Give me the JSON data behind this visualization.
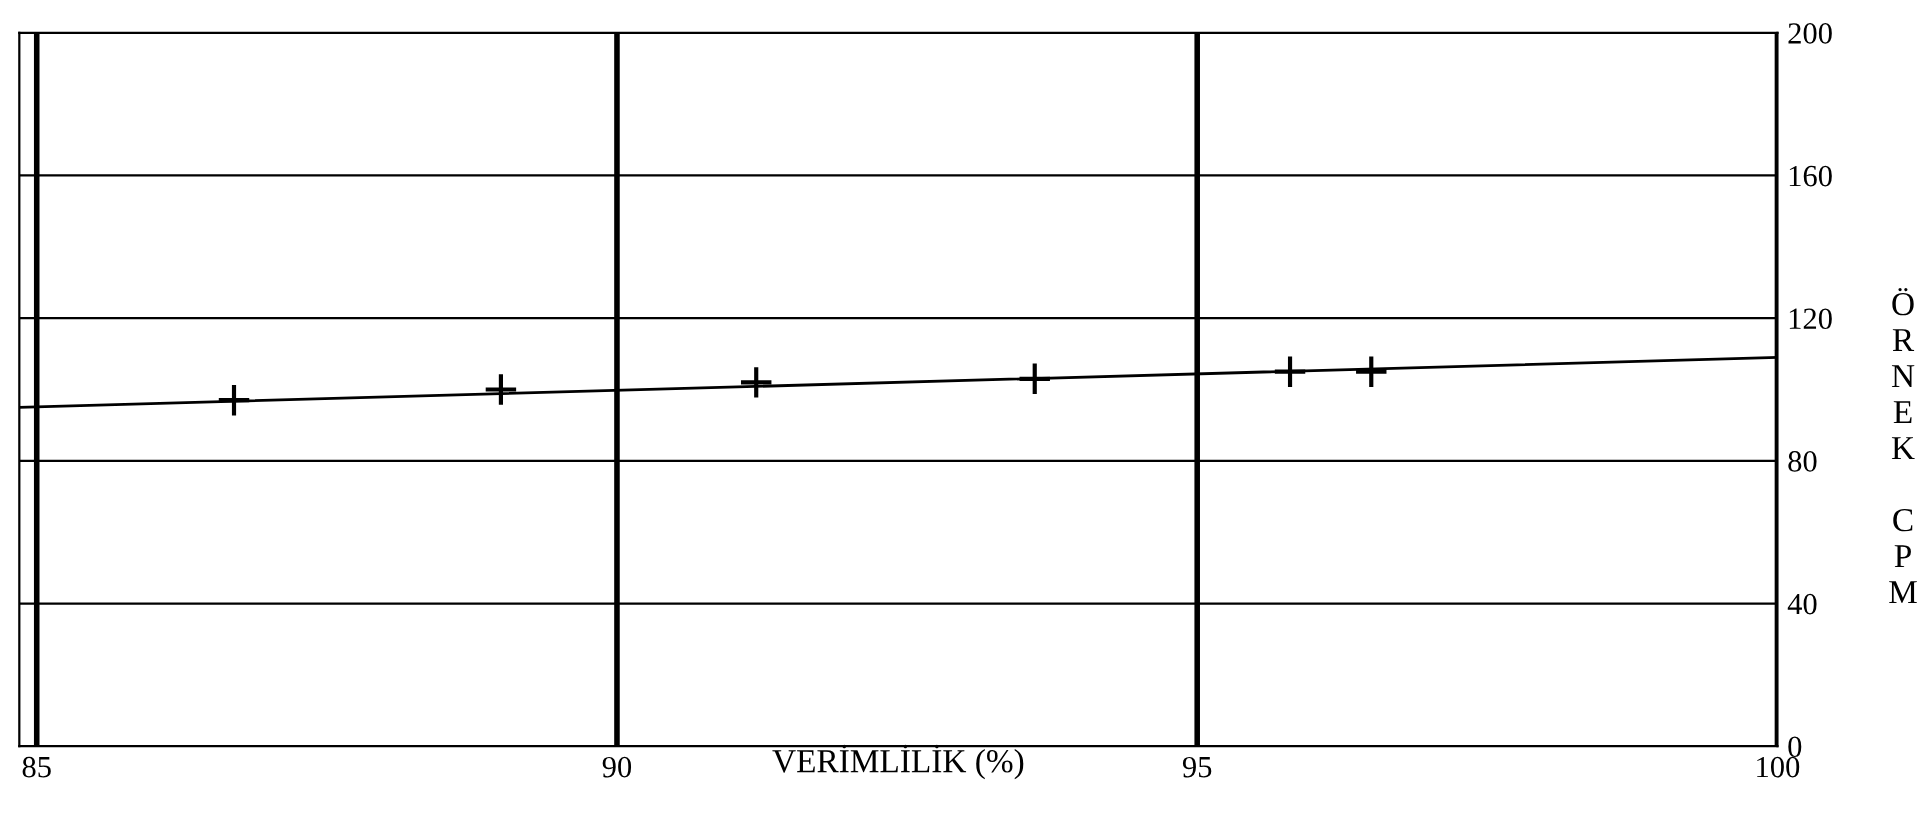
{
  "chart_data": {
    "type": "scatter",
    "xlabel": "VERİMLİLİK (%)",
    "ylabel": "ÖRNEK CPM",
    "series": [
      {
        "color": "#000000",
        "marker": "cross",
        "x": [
          86.7,
          89.0,
          91.2,
          93.6,
          95.8,
          96.5
        ],
        "values": [
          97,
          100,
          102,
          103,
          105,
          105
        ]
      },
      {
        "type": "line",
        "color": "#000000",
        "marker": "none",
        "x": [
          84.85,
          100
        ],
        "values": [
          95,
          109
        ]
      }
    ],
    "xlim": [
      84.85,
      100
    ],
    "xticks": [
      85,
      90,
      95,
      100
    ],
    "ylim": [
      0,
      200
    ],
    "yticks": [
      0,
      40,
      80,
      120,
      160,
      200
    ],
    "grid": true
  }
}
